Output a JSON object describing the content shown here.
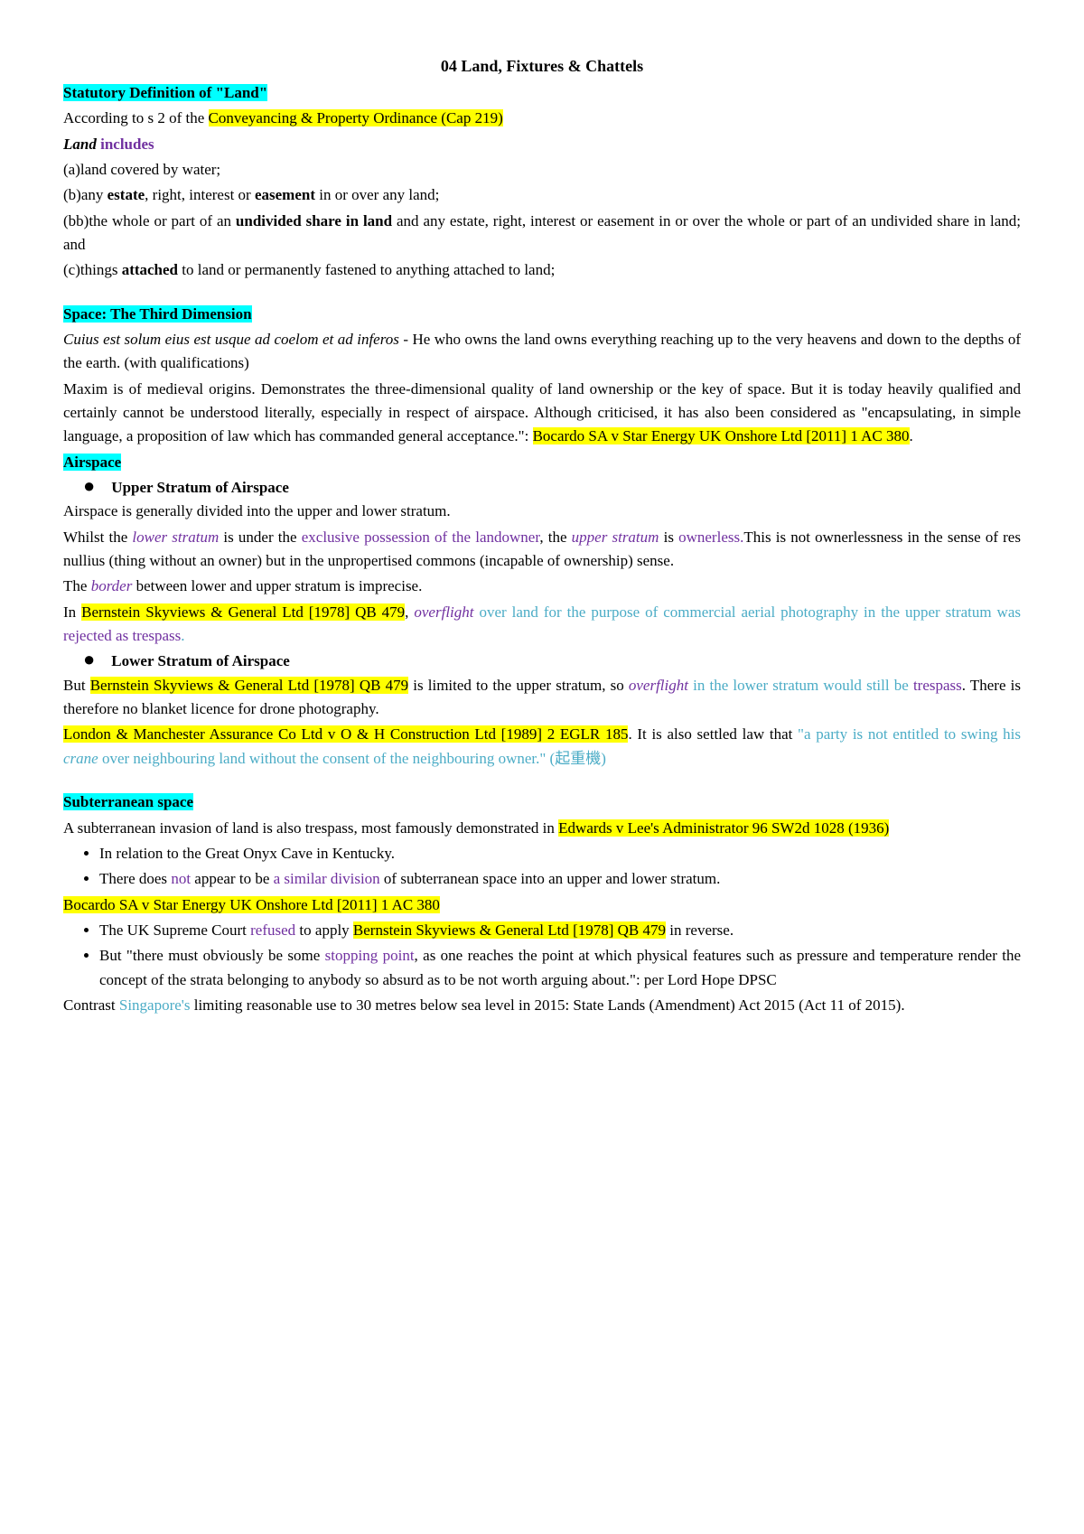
{
  "doc": {
    "title": "04 Land, Fixtures & Chattels",
    "sec1": {
      "heading": "Statutory Definition of \"Land\"",
      "intro_a": "According to s 2 of the ",
      "intro_b": "Conveyancing & Property Ordinance (Cap 219)",
      "land": "Land",
      "includes": " includes",
      "a": "(a)land covered by water;",
      "b_pre": "(b)any ",
      "b_estate": "estate",
      "b_mid": ", right, interest or ",
      "b_easement": "easement",
      "b_post": " in or over any land;",
      "bb_pre": "(bb)the whole or part of an ",
      "bb_share": "undivided share in land",
      "bb_post": " and any estate, right, interest or easement in or over the whole or part of an undivided share in land; and",
      "c_pre": "(c)things ",
      "c_attached": "attached",
      "c_post": " to land or permanently fastened to anything attached to land;"
    },
    "sec2": {
      "heading": "Space: The Third Dimension",
      "para1_a": "Cuius est solum eius est usque ad coelom et ad inferos",
      "para1_b": " - He who owns the land owns everything reaching up to the very heavens and down to the depths of the earth. (with qualifications)",
      "para2_a": "Maxim is of medieval origins. Demonstrates the three-dimensional quality of land ownership or the key of space. But it is today heavily qualified and certainly cannot be understood literally, especially in respect of airspace. Although criticised, it has also been considered as \"encapsulating, in simple language, a proposition of law which has commanded general acceptance.\": ",
      "para2_b": "Bocardo SA v Star Energy UK Onshore Ltd [2011] 1 AC 380",
      "para2_c": "."
    },
    "airspace": {
      "heading": "Airspace",
      "upper_heading": "Upper Stratum of Airspace",
      "u1": "Airspace is generally divided into the upper and lower stratum.",
      "u2_a": "Whilst the ",
      "u2_b": "lower stratum",
      "u2_c": " is under the ",
      "u2_d": "exclusive possession of the landowner",
      "u2_e": ", the ",
      "u2_f": "upper stratum",
      "u2_g": " is ",
      "u2_h": "ownerless.",
      "u2_i": "This is not ownerlessness in the sense of res nullius (thing without an owner) but in the unpropertised commons (incapable of ownership) sense.",
      "u3_a": "The ",
      "u3_b": "border",
      "u3_c": " between lower and upper stratum is imprecise.",
      "u4_a": "In ",
      "u4_b": "Bernstein Skyviews & General Ltd [1978] QB 479",
      "u4_c": ", ",
      "u4_d": "overflight",
      "u4_e": " over land for the purpose of commercial aerial photography in the upper stratum was ",
      "u4_f": "rejected as trespass",
      "u4_g": ".",
      "lower_heading": "Lower Stratum of Airspace",
      "l1_a": "But ",
      "l1_b": "Bernstein Skyviews & General Ltd [1978] QB 479",
      "l1_c": " is limited to the upper stratum, so ",
      "l1_d": "overflight",
      "l1_e": " in the lower stratum would still be ",
      "l1_f": "trespass",
      "l1_g": ". There is therefore no blanket licence for drone photography.",
      "l2_a": "London & Manchester Assurance Co Ltd v O & H Construction Ltd [1989] 2 EGLR 185",
      "l2_b": ". It is also settled law that ",
      "l2_c": "\"a party is not entitled to swing his ",
      "l2_d": "crane",
      "l2_e": " over neighbouring land without the consent of the neighbouring owner.\" (起重機)"
    },
    "sub": {
      "heading": "Subterranean space",
      "p1_a": "A subterranean invasion of land is also trespass, most famously demonstrated in ",
      "p1_b": "Edwards v Lee's Administrator 96 SW2d 1028 (1936)",
      "li1": "In relation to the Great Onyx Cave in Kentucky.",
      "li2_a": "There does ",
      "li2_b": "not",
      "li2_c": " appear to be ",
      "li2_d": "a similar division",
      "li2_e": " of subterranean space into an upper and lower stratum.",
      "boc": "Bocardo SA v Star Energy UK Onshore Ltd [2011] 1 AC 380",
      "li3_a": "The UK Supreme Court ",
      "li3_b": "refused",
      "li3_c": " to apply ",
      "li3_d": "Bernstein Skyviews & General Ltd [1978] QB 479",
      "li3_e": " in reverse.",
      "li4_a": "But \"there must obviously be some ",
      "li4_b": "stopping point",
      "li4_c": ", as one reaches the point at which physical features such as pressure and temperature render the concept of the strata belonging to anybody so absurd as to be not worth arguing about.\": per Lord Hope DPSC",
      "p2_a": "Contrast ",
      "p2_b": "Singapore's",
      "p2_c": " limiting reasonable use to 30 metres below sea level in 2015: State Lands (Amendment) Act 2015 (Act 11 of 2015)."
    }
  }
}
